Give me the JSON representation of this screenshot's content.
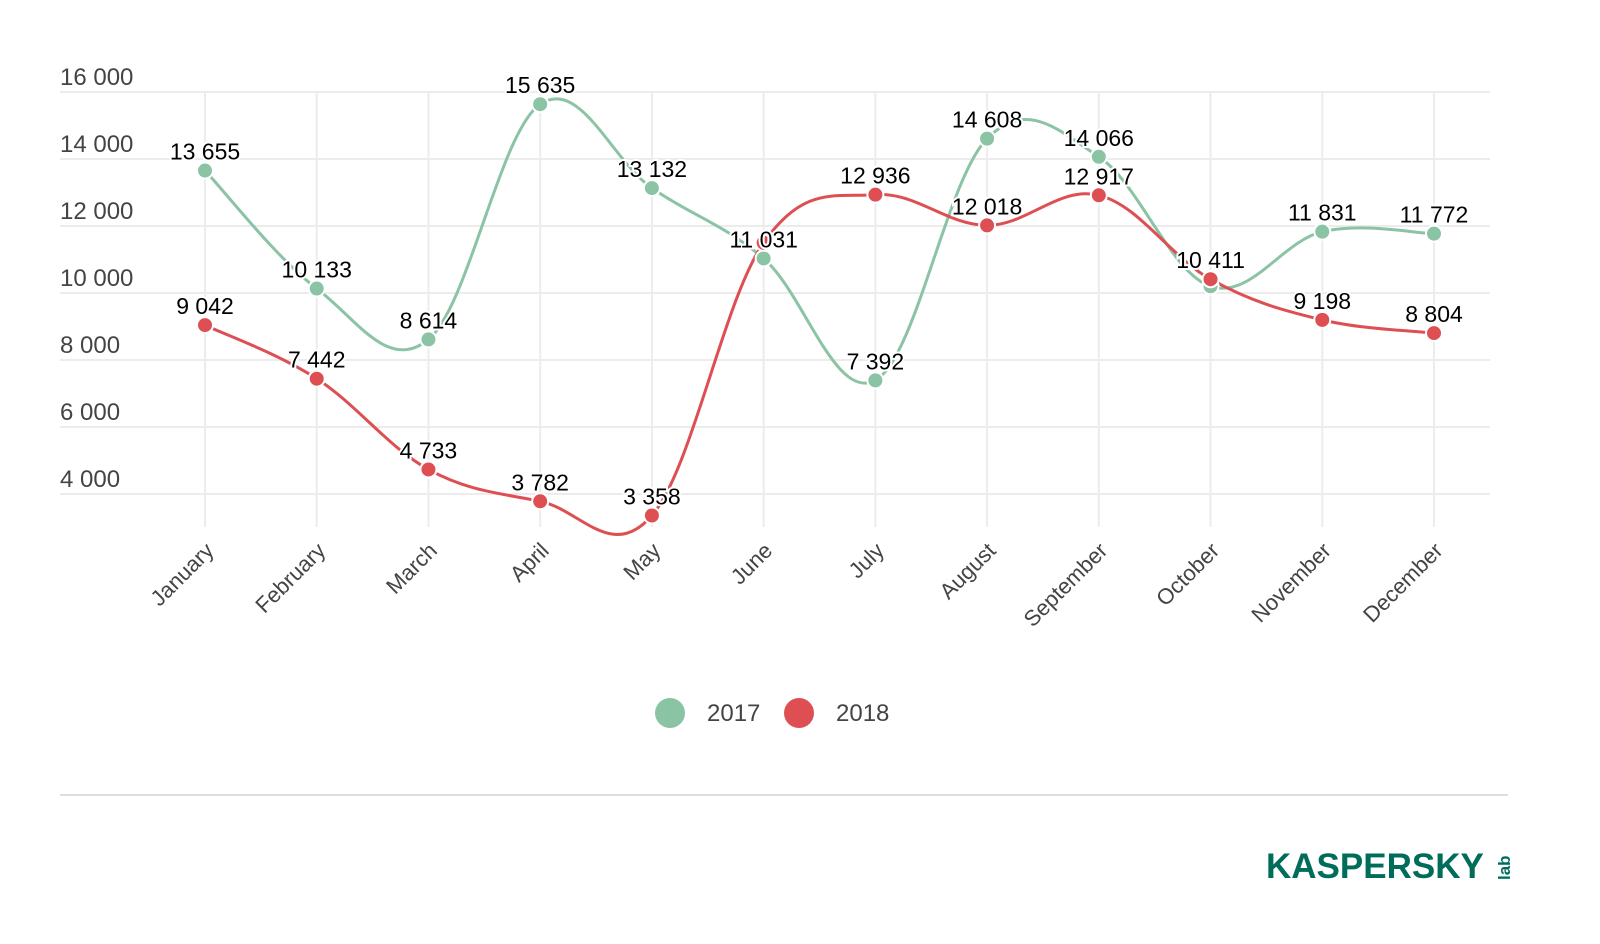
{
  "chart_data": {
    "type": "line",
    "title": "",
    "xlabel": "",
    "ylabel": "",
    "categories": [
      "January",
      "February",
      "March",
      "April",
      "May",
      "June",
      "July",
      "August",
      "September",
      "October",
      "November",
      "December"
    ],
    "ylim": [
      3000,
      16000
    ],
    "yticks": [
      4000,
      6000,
      8000,
      10000,
      12000,
      14000,
      16000
    ],
    "ytick_labels": [
      "4 000",
      "6 000",
      "8 000",
      "10 000",
      "12 000",
      "14 000",
      "16 000"
    ],
    "grid": true,
    "legend_position": "bottom",
    "series": [
      {
        "name": "2017",
        "color": "#8bc3a5",
        "values": [
          13655,
          10133,
          8614,
          15635,
          13132,
          11031,
          7392,
          14608,
          14066,
          10200,
          11831,
          11772
        ],
        "labels": [
          "13 655",
          "10 133",
          "8 614",
          "15 635",
          "13 132",
          "11 031",
          "7 392",
          "14 608",
          "14 066",
          "",
          "11 831",
          "11 772"
        ]
      },
      {
        "name": "2018",
        "color": "#dd4f52",
        "values": [
          9042,
          7442,
          4733,
          3782,
          3358,
          11500,
          12936,
          12018,
          12917,
          10411,
          9198,
          8804
        ],
        "labels": [
          "9 042",
          "7 442",
          "4 733",
          "3 782",
          "3 358",
          "",
          "12 936",
          "12 018",
          "12 917",
          "10 411",
          "9 198",
          "8 804"
        ]
      }
    ]
  },
  "logo": {
    "text": "KASPERSKY",
    "suffix": "lab",
    "color": "#006d5b",
    "accent": "#e4002b"
  }
}
